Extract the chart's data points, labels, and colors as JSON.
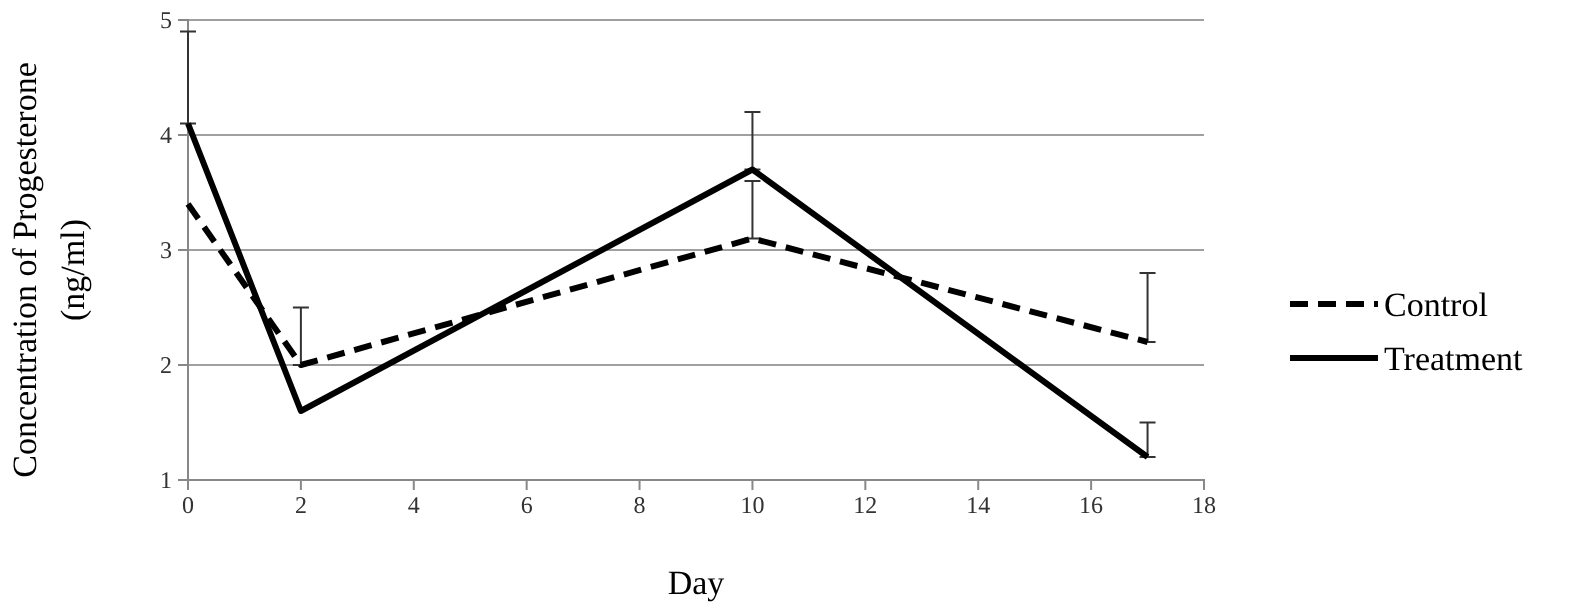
{
  "chart_data": {
    "type": "line",
    "xlabel": "Day",
    "ylabel": "Concentration of Progesterone\n(ng/ml)",
    "xlim": [
      0,
      18
    ],
    "xticks": [
      0,
      2,
      4,
      6,
      8,
      10,
      12,
      14,
      16,
      18
    ],
    "ylim": [
      1,
      5
    ],
    "yticks": [
      1,
      2,
      3,
      4,
      5
    ],
    "grid": "y",
    "legend": "right",
    "marker": "none",
    "x": [
      0,
      2,
      10,
      17
    ],
    "series": [
      {
        "name": "Control",
        "color": "#000000",
        "line_style": "dashed",
        "values": [
          3.4,
          2.0,
          3.1,
          2.2
        ],
        "errors": [
          null,
          [
            2.0,
            2.5
          ],
          [
            3.1,
            3.6
          ],
          [
            2.2,
            2.8
          ]
        ]
      },
      {
        "name": "Treatment",
        "color": "#000000",
        "line_style": "solid",
        "values": [
          4.1,
          1.6,
          3.7,
          1.2
        ],
        "errors": [
          [
            4.1,
            4.9
          ],
          null,
          [
            3.7,
            4.2
          ],
          [
            1.2,
            1.5
          ]
        ]
      }
    ]
  }
}
